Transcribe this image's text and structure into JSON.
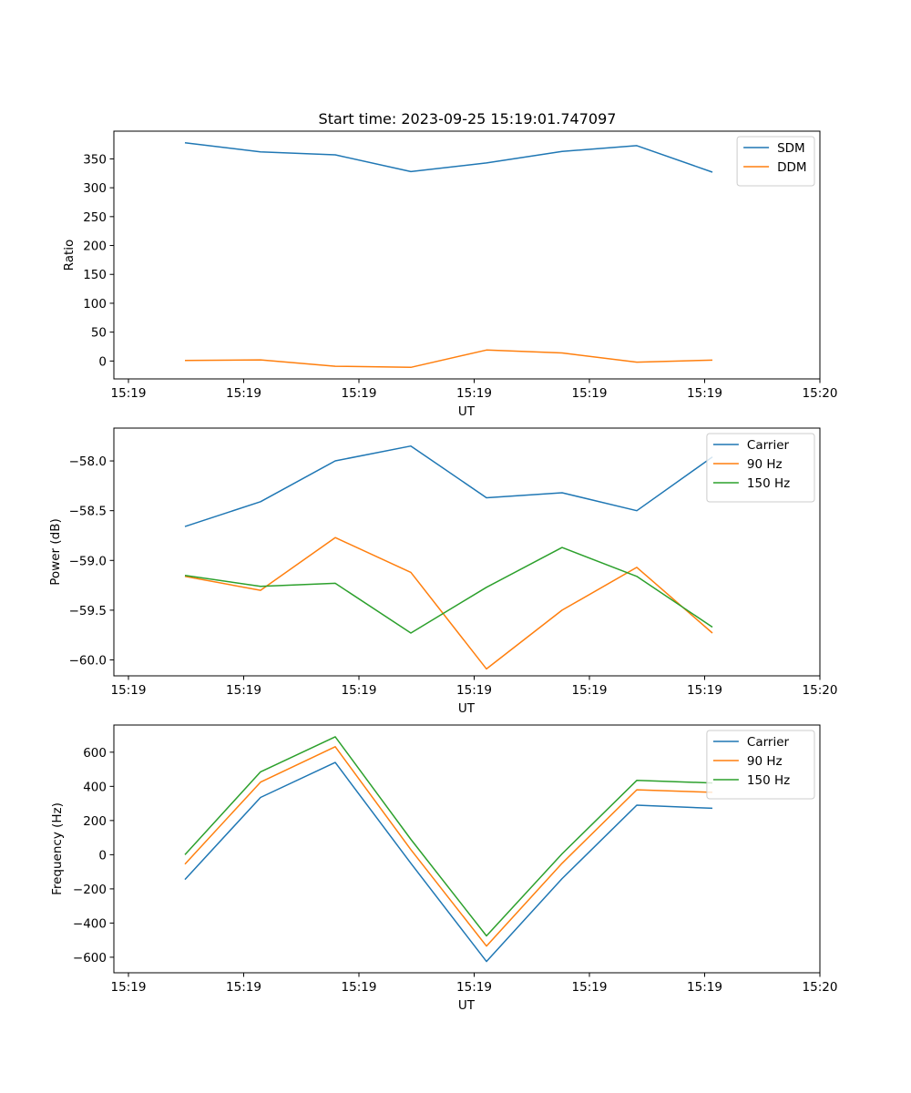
{
  "title": "Start time: 2023-09-25 15:19:01.747097",
  "chart_data": [
    {
      "type": "line",
      "xlabel": "UT",
      "ylabel": "Ratio",
      "x_tick_labels": [
        "15:19",
        "15:19",
        "15:19",
        "15:19",
        "15:19",
        "15:19",
        "15:20"
      ],
      "ylim": [
        -31,
        398
      ],
      "y_ticks": [
        0,
        50,
        100,
        150,
        200,
        250,
        300,
        350
      ],
      "y_tick_labels": [
        "0",
        "50",
        "100",
        "150",
        "200",
        "250",
        "300",
        "350"
      ],
      "legend_position": "top-right",
      "series": [
        {
          "name": "SDM",
          "color": "#1f77b4",
          "values": [
            378,
            362,
            357,
            328,
            343,
            363,
            373,
            327
          ]
        },
        {
          "name": "DDM",
          "color": "#ff7f0e",
          "values": [
            1,
            2,
            -9,
            -11,
            19,
            14,
            -2,
            1.5
          ]
        }
      ]
    },
    {
      "type": "line",
      "xlabel": "UT",
      "ylabel": "Power (dB)",
      "x_tick_labels": [
        "15:19",
        "15:19",
        "15:19",
        "15:19",
        "15:19",
        "15:19",
        "15:20"
      ],
      "ylim": [
        -60.16,
        -57.67
      ],
      "y_ticks": [
        -60.0,
        -59.5,
        -59.0,
        -58.5,
        -58.0
      ],
      "y_tick_labels": [
        "−60.0",
        "−59.5",
        "−59.0",
        "−58.5",
        "−58.0"
      ],
      "legend_position": "top-right",
      "series": [
        {
          "name": "Carrier",
          "color": "#1f77b4",
          "values": [
            -58.66,
            -58.41,
            -58.0,
            -57.85,
            -58.37,
            -58.32,
            -58.5,
            -57.96
          ]
        },
        {
          "name": "90 Hz",
          "color": "#ff7f0e",
          "values": [
            -59.16,
            -59.3,
            -58.77,
            -59.12,
            -60.09,
            -59.5,
            -59.07,
            -59.73
          ]
        },
        {
          "name": "150 Hz",
          "color": "#2ca02c",
          "values": [
            -59.15,
            -59.26,
            -59.23,
            -59.73,
            -59.27,
            -58.87,
            -59.16,
            -59.67
          ]
        }
      ]
    },
    {
      "type": "line",
      "xlabel": "UT",
      "ylabel": "Frequency (Hz)",
      "x_tick_labels": [
        "15:19",
        "15:19",
        "15:19",
        "15:19",
        "15:19",
        "15:19",
        "15:20"
      ],
      "ylim": [
        -691,
        759
      ],
      "y_ticks": [
        -600,
        -400,
        -200,
        0,
        200,
        400,
        600
      ],
      "y_tick_labels": [
        "−600",
        "−400",
        "−200",
        "0",
        "200",
        "400",
        "600"
      ],
      "legend_position": "top-right",
      "series": [
        {
          "name": "Carrier",
          "color": "#1f77b4",
          "values": [
            -145,
            335,
            540,
            -50,
            -625,
            -140,
            290,
            272
          ]
        },
        {
          "name": "90 Hz",
          "color": "#ff7f0e",
          "values": [
            -55,
            425,
            632,
            30,
            -535,
            -50,
            380,
            365
          ]
        },
        {
          "name": "150 Hz",
          "color": "#2ca02c",
          "values": [
            0,
            485,
            690,
            90,
            -475,
            5,
            435,
            420
          ]
        }
      ]
    }
  ]
}
